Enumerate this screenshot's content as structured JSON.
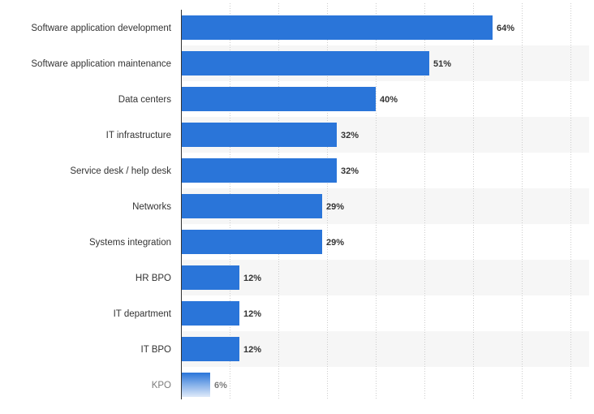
{
  "chart_data": {
    "type": "bar",
    "orientation": "horizontal",
    "categories": [
      "Software application development",
      "Software application maintenance",
      "Data centers",
      "IT infrastructure",
      "Service desk / help desk",
      "Networks",
      "Systems integration",
      "HR BPO",
      "IT department",
      "IT BPO",
      "KPO"
    ],
    "values": [
      64,
      51,
      40,
      32,
      32,
      29,
      29,
      12,
      12,
      12,
      6
    ],
    "value_labels": [
      "64%",
      "51%",
      "40%",
      "32%",
      "32%",
      "29%",
      "29%",
      "12%",
      "12%",
      "12%",
      "6%"
    ],
    "xlim": [
      0,
      80
    ],
    "grid": true,
    "colors": {
      "bar": "#2a75d9",
      "band": "#f6f6f6",
      "grid": "#cccccc",
      "axis": "#333333"
    }
  }
}
